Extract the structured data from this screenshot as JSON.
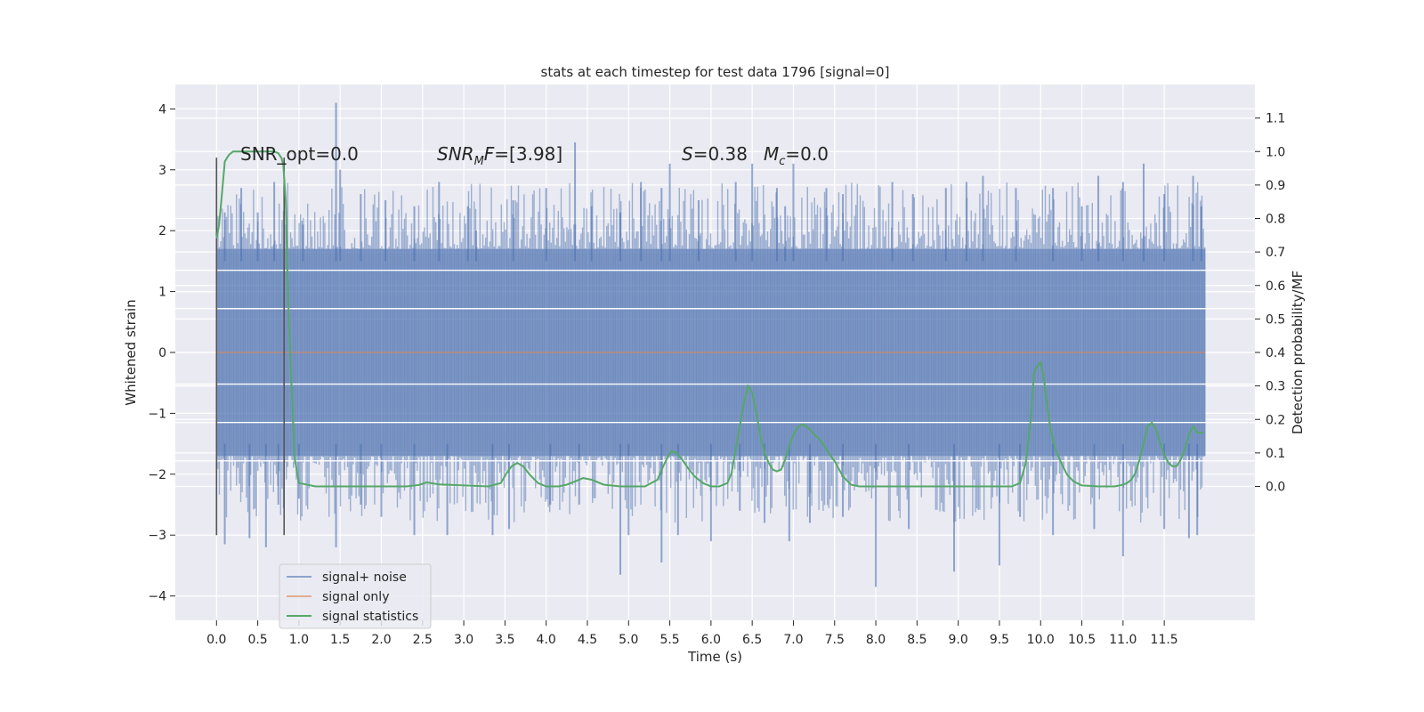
{
  "chart_data": {
    "type": "line",
    "title": "stats at each timestep for test data 1796 [signal=0]",
    "xlabel": "Time (s)",
    "ylabel": "Whitened strain",
    "ylabel_right": "Detection probability/MF",
    "xlim": [
      -0.5,
      12.6
    ],
    "ylim": [
      -4.4,
      4.4
    ],
    "ylim_right": [
      -0.4,
      1.2
    ],
    "x_ticks": [
      0.0,
      0.5,
      1.0,
      1.5,
      2.0,
      2.5,
      3.0,
      3.5,
      4.0,
      4.5,
      5.0,
      5.5,
      6.0,
      6.5,
      7.0,
      7.5,
      8.0,
      8.5,
      9.0,
      9.5,
      10.0,
      10.5,
      11.0,
      11.5
    ],
    "x_tick_labels": [
      "0.0",
      "0.5",
      "1.0",
      "1.5",
      "2.0",
      "2.5",
      "3.0",
      "3.5",
      "4.0",
      "4.5",
      "5.0",
      "5.5",
      "6.0",
      "6.5",
      "7.0",
      "7.5",
      "8.0",
      "8.5",
      "9.0",
      "9.5",
      "10.0",
      "10.5",
      "11.0",
      "11.5"
    ],
    "y_ticks": [
      -4,
      -3,
      -2,
      -1,
      0,
      1,
      2,
      3,
      4
    ],
    "y_tick_labels": [
      "−4",
      "−3",
      "−2",
      "−1",
      "0",
      "1",
      "2",
      "3",
      "4"
    ],
    "y_right_ticks": [
      0.0,
      0.1,
      0.2,
      0.3,
      0.4,
      0.5,
      0.6,
      0.7,
      0.8,
      0.9,
      1.0,
      1.1
    ],
    "y_right_tick_labels": [
      "0.0",
      "0.1",
      "0.2",
      "0.3",
      "0.4",
      "0.5",
      "0.6",
      "0.7",
      "0.8",
      "0.9",
      "1.0",
      "1.1"
    ],
    "grid": true,
    "legend_position": "bottom-left",
    "annotations": {
      "snr_opt": "SNR_opt=0.0",
      "snr_mf_sym": "SNR",
      "snr_mf_sub": "M",
      "snr_mf_f": "F",
      "snr_mf_val": "=[3.98]",
      "s_sym": "S",
      "s_val": "=0.38",
      "mc_sym": "M",
      "mc_sub": "c",
      "mc_val": "=0.0"
    },
    "window_markers_x": [
      0.0,
      0.82
    ],
    "window_markers_y": [
      -3.0,
      3.2
    ],
    "noise": {
      "x_start": 0.0,
      "x_end": 12.0,
      "core_band": [
        -1.7,
        1.7
      ],
      "peaks": [
        [
          0.1,
          2.3
        ],
        [
          0.3,
          2.7
        ],
        [
          0.5,
          2.3
        ],
        [
          0.7,
          2.8
        ],
        [
          1.05,
          2.1
        ],
        [
          1.45,
          4.1
        ],
        [
          1.5,
          3.0
        ],
        [
          1.75,
          2.6
        ],
        [
          2.05,
          2.5
        ],
        [
          2.4,
          2.4
        ],
        [
          2.7,
          2.8
        ],
        [
          3.05,
          2.4
        ],
        [
          3.15,
          2.0
        ],
        [
          3.6,
          2.5
        ],
        [
          4.0,
          2.7
        ],
        [
          4.35,
          3.45
        ],
        [
          4.55,
          2.4
        ],
        [
          4.9,
          2.3
        ],
        [
          5.15,
          2.8
        ],
        [
          5.4,
          2.7
        ],
        [
          5.5,
          3.1
        ],
        [
          5.85,
          2.5
        ],
        [
          6.3,
          2.8
        ],
        [
          6.5,
          3.1
        ],
        [
          6.8,
          2.7
        ],
        [
          6.9,
          2.4
        ],
        [
          7.0,
          3.1
        ],
        [
          7.4,
          2.7
        ],
        [
          7.6,
          2.6
        ],
        [
          8.2,
          2.8
        ],
        [
          8.45,
          2.6
        ],
        [
          8.85,
          2.7
        ],
        [
          9.1,
          2.8
        ],
        [
          9.3,
          2.9
        ],
        [
          9.7,
          2.7
        ],
        [
          10.15,
          2.7
        ],
        [
          10.5,
          2.4
        ],
        [
          10.7,
          2.9
        ],
        [
          11.0,
          2.8
        ],
        [
          11.25,
          3.1
        ],
        [
          11.5,
          2.6
        ],
        [
          11.85,
          2.9
        ],
        [
          11.95,
          2.4
        ]
      ],
      "troughs": [
        [
          0.1,
          -3.15
        ],
        [
          0.4,
          -3.05
        ],
        [
          0.6,
          -3.2
        ],
        [
          0.75,
          -2.5
        ],
        [
          1.0,
          -2.4
        ],
        [
          1.45,
          -3.2
        ],
        [
          1.75,
          -2.5
        ],
        [
          2.0,
          -2.7
        ],
        [
          2.4,
          -3.0
        ],
        [
          2.8,
          -3.0
        ],
        [
          3.35,
          -3.0
        ],
        [
          3.55,
          -2.9
        ],
        [
          4.05,
          -2.5
        ],
        [
          4.4,
          -2.5
        ],
        [
          4.9,
          -3.65
        ],
        [
          5.0,
          -3.0
        ],
        [
          5.4,
          -3.45
        ],
        [
          5.6,
          -3.0
        ],
        [
          6.0,
          -3.1
        ],
        [
          6.35,
          -2.6
        ],
        [
          6.65,
          -2.8
        ],
        [
          6.95,
          -3.1
        ],
        [
          7.2,
          -2.8
        ],
        [
          7.6,
          -2.7
        ],
        [
          8.0,
          -3.85
        ],
        [
          8.4,
          -2.9
        ],
        [
          8.95,
          -3.6
        ],
        [
          9.5,
          -3.5
        ],
        [
          9.75,
          -2.7
        ],
        [
          10.15,
          -3.0
        ],
        [
          10.65,
          -2.9
        ],
        [
          11.0,
          -3.35
        ],
        [
          11.5,
          -2.9
        ],
        [
          11.8,
          -3.05
        ],
        [
          11.9,
          -3.0
        ]
      ],
      "interior_gridlines": [
        1.35,
        0.72,
        -0.52,
        -1.15,
        -1.78
      ]
    },
    "series": [
      {
        "name": "signal+ noise",
        "color": "#4c72b0"
      },
      {
        "name": "signal only",
        "color": "#dd8452",
        "x": [
          0.0,
          12.0
        ],
        "y": [
          0.0,
          0.0
        ]
      },
      {
        "name": "signal statistics",
        "color": "#55a868",
        "axis": "right",
        "x": [
          0.0,
          0.03,
          0.06,
          0.1,
          0.15,
          0.2,
          0.3,
          0.45,
          0.6,
          0.7,
          0.75,
          0.79,
          0.81,
          0.84,
          0.87,
          0.92,
          0.95,
          1.0,
          1.2,
          1.5,
          2.0,
          2.3,
          2.45,
          2.55,
          2.7,
          3.0,
          3.3,
          3.45,
          3.52,
          3.58,
          3.65,
          3.72,
          3.8,
          3.9,
          4.0,
          4.15,
          4.25,
          4.35,
          4.45,
          4.55,
          4.7,
          4.9,
          5.2,
          5.35,
          5.42,
          5.48,
          5.52,
          5.58,
          5.65,
          5.72,
          5.8,
          5.9,
          6.0,
          6.1,
          6.2,
          6.25,
          6.3,
          6.35,
          6.4,
          6.45,
          6.5,
          6.55,
          6.6,
          6.65,
          6.7,
          6.75,
          6.8,
          6.85,
          6.9,
          6.95,
          7.0,
          7.05,
          7.1,
          7.15,
          7.2,
          7.25,
          7.3,
          7.35,
          7.4,
          7.5,
          7.6,
          7.7,
          7.8,
          7.9,
          8.0,
          8.5,
          9.0,
          9.5,
          9.65,
          9.75,
          9.82,
          9.88,
          9.92,
          9.96,
          10.0,
          10.04,
          10.08,
          10.12,
          10.18,
          10.25,
          10.32,
          10.4,
          10.5,
          10.7,
          10.9,
          11.0,
          11.05,
          11.1,
          11.15,
          11.2,
          11.25,
          11.3,
          11.35,
          11.4,
          11.45,
          11.5,
          11.55,
          11.6,
          11.65,
          11.7,
          11.75,
          11.8,
          11.85,
          11.9,
          11.95,
          11.98
        ],
        "y": [
          0.74,
          0.78,
          0.86,
          0.97,
          0.99,
          1.0,
          1.0,
          1.0,
          1.0,
          1.0,
          0.995,
          0.98,
          0.96,
          0.85,
          0.55,
          0.24,
          0.08,
          0.01,
          0.0,
          0.0,
          0.0,
          0.0,
          0.004,
          0.012,
          0.006,
          0.003,
          0.0,
          0.01,
          0.04,
          0.06,
          0.07,
          0.06,
          0.035,
          0.01,
          0.0,
          0.0,
          0.005,
          0.015,
          0.025,
          0.02,
          0.005,
          0.0,
          0.0,
          0.02,
          0.06,
          0.09,
          0.105,
          0.1,
          0.08,
          0.055,
          0.03,
          0.01,
          0.0,
          0.0,
          0.01,
          0.04,
          0.11,
          0.18,
          0.25,
          0.3,
          0.28,
          0.22,
          0.15,
          0.1,
          0.07,
          0.05,
          0.045,
          0.05,
          0.08,
          0.12,
          0.155,
          0.175,
          0.185,
          0.18,
          0.17,
          0.155,
          0.145,
          0.13,
          0.11,
          0.075,
          0.03,
          0.005,
          0.0,
          0.0,
          0.0,
          0.0,
          0.0,
          0.0,
          0.0,
          0.01,
          0.07,
          0.2,
          0.34,
          0.36,
          0.37,
          0.32,
          0.24,
          0.17,
          0.11,
          0.07,
          0.035,
          0.015,
          0.003,
          0.0,
          0.0,
          0.005,
          0.01,
          0.02,
          0.04,
          0.08,
          0.13,
          0.18,
          0.19,
          0.17,
          0.13,
          0.095,
          0.07,
          0.06,
          0.06,
          0.08,
          0.11,
          0.155,
          0.18,
          0.16,
          0.16,
          0.16
        ]
      }
    ]
  },
  "colors": {
    "plot_bg": "#eaeaf2",
    "grid": "#ffffff",
    "marker": "#555555",
    "text": "#262626"
  }
}
